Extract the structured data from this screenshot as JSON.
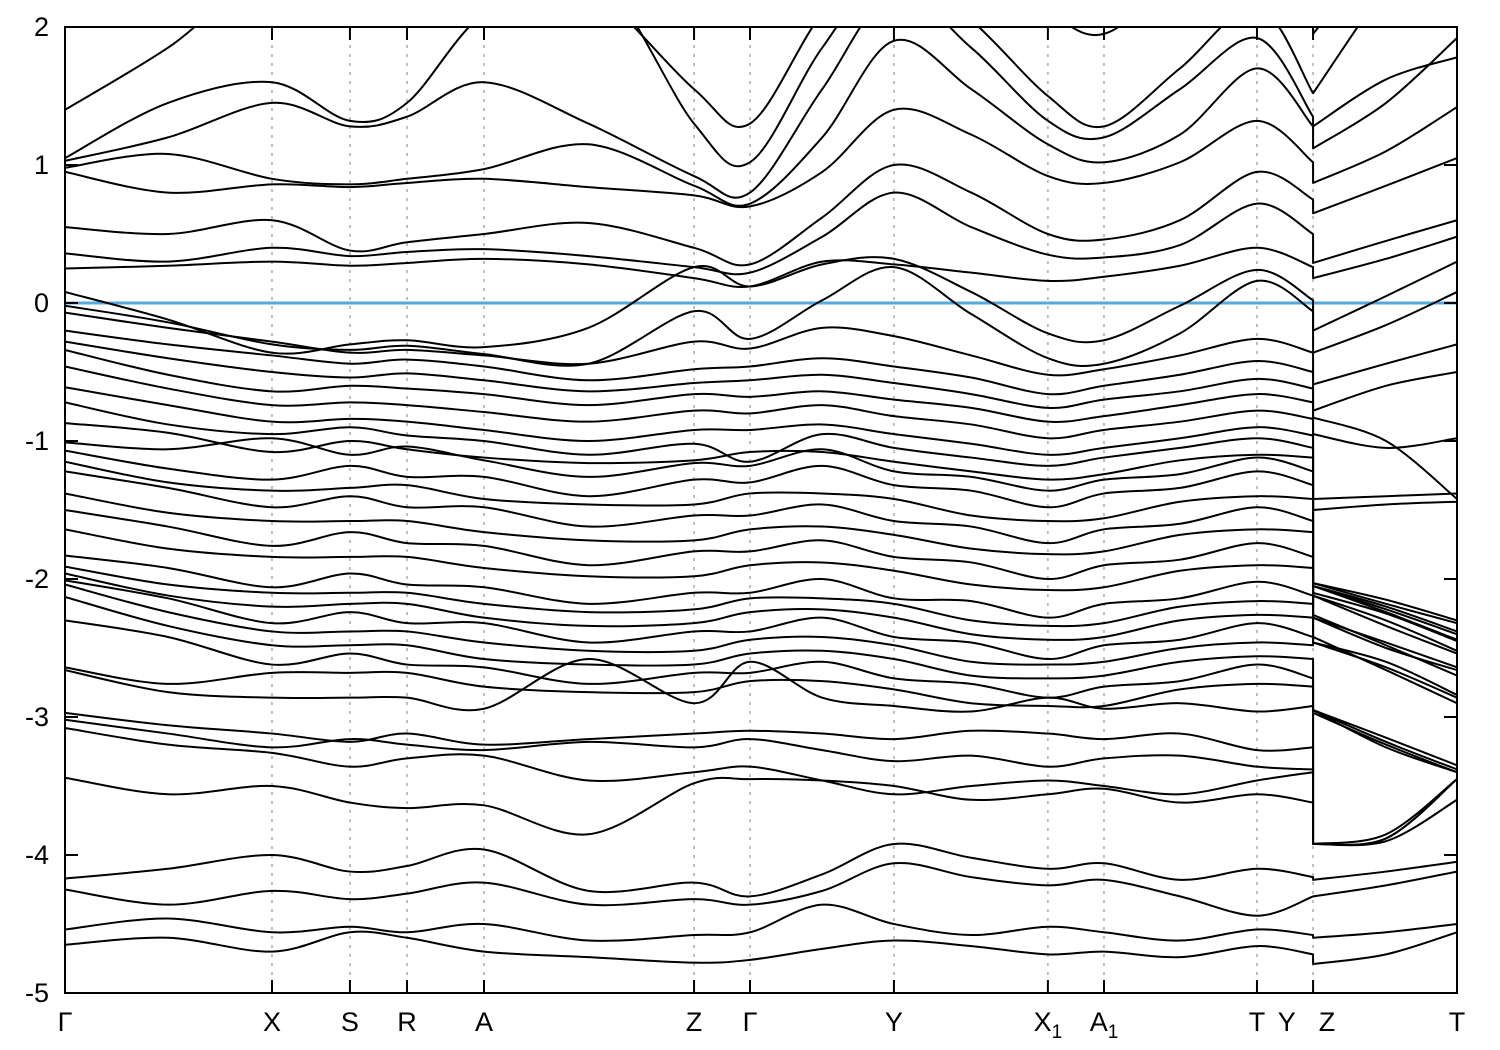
{
  "figure": {
    "background": "#ffffff",
    "description": "Electronic band structure plot with Fermi level line at 0"
  },
  "chart_data": {
    "type": "line",
    "title": "",
    "xlabel": "",
    "ylabel": "",
    "ylim": [
      -5,
      2
    ],
    "yticks": [
      2,
      1,
      0,
      -1,
      -2,
      -3,
      -4,
      -5
    ],
    "ytick_labels": [
      "2",
      "1",
      "0",
      "-1",
      "-2",
      "-3",
      "-4",
      "-5"
    ],
    "fermi_energy": 0,
    "fermi_color": "#55aadd",
    "band_color": "#000000",
    "axis_color": "#000000",
    "grid_color": "#aaaaaa",
    "grid": "vertical-dashed-at-kpoints",
    "legend": "none",
    "kpath": "Γ-X-S-R-A-Z-Γ-Y-X1-A1-T-Y | Z-T",
    "kticks": [
      0.1487,
      0.2047,
      0.2457,
      0.301,
      0.4519,
      0.4921,
      0.5955,
      0.7061,
      0.7464,
      0.8563,
      0.8966
    ],
    "klabels": [
      {
        "text": "Γ",
        "x": 0.0
      },
      {
        "text": "X",
        "x": 0.1487
      },
      {
        "text": "S",
        "x": 0.2047
      },
      {
        "text": "R",
        "x": 0.2457
      },
      {
        "text": "A",
        "x": 0.301
      },
      {
        "text": "Z",
        "x": 0.4519
      },
      {
        "text": "Γ",
        "x": 0.4921
      },
      {
        "text": "Y",
        "x": 0.5955
      },
      {
        "text": "X",
        "sub": "1",
        "x": 0.7061
      },
      {
        "text": "A",
        "sub": "1",
        "x": 0.7464
      },
      {
        "text": "T",
        "x": 0.8563
      },
      {
        "text": "Y",
        "x": 0.8777
      },
      {
        "text": "Z",
        "x": 0.9066
      },
      {
        "text": "T",
        "x": 1.0
      }
    ],
    "discontinuity_x": 0.8966,
    "stations_main": [
      0.0,
      0.074,
      0.1487,
      0.2047,
      0.2457,
      0.301,
      0.376,
      0.4519,
      0.4921,
      0.544,
      0.5955,
      0.651,
      0.7061,
      0.7464,
      0.801,
      0.8563,
      0.8966
    ],
    "stations_right": [
      0.8966,
      0.949,
      1.0
    ],
    "bands": [
      [
        1.4,
        1.85,
        2.4,
        2.1,
        2.45,
        2.6,
        2.3,
        1.55,
        1.3,
        2.1,
        2.6,
        2.4,
        2.1,
        1.95,
        2.35,
        2.6,
        2.05,
        1.95,
        2.6,
        3.2
      ],
      [
        1.05,
        1.45,
        1.6,
        1.32,
        1.45,
        2.1,
        2.45,
        1.3,
        1.02,
        1.85,
        2.45,
        2.05,
        1.5,
        1.28,
        1.7,
        2.15,
        1.52,
        1.52,
        2.3,
        3.0
      ],
      [
        1.03,
        1.2,
        1.45,
        1.28,
        1.35,
        1.6,
        1.3,
        0.92,
        0.8,
        1.55,
        2.25,
        1.85,
        1.32,
        1.2,
        1.55,
        1.92,
        1.35,
        1.28,
        1.62,
        1.78
      ],
      [
        0.98,
        1.08,
        0.9,
        0.86,
        0.9,
        0.97,
        1.15,
        0.85,
        0.72,
        1.2,
        1.9,
        1.55,
        1.15,
        1.02,
        1.22,
        1.7,
        1.28,
        1.12,
        1.45,
        1.92
      ],
      [
        0.95,
        0.8,
        0.86,
        0.84,
        0.87,
        0.9,
        0.84,
        0.78,
        0.7,
        0.95,
        1.4,
        1.22,
        0.92,
        0.87,
        1.02,
        1.32,
        1.02,
        0.87,
        1.1,
        1.42
      ],
      [
        0.55,
        0.5,
        0.6,
        0.38,
        0.44,
        0.5,
        0.58,
        0.4,
        0.28,
        0.62,
        1.0,
        0.8,
        0.5,
        0.46,
        0.6,
        0.95,
        0.75,
        0.65,
        0.85,
        1.05
      ],
      [
        0.36,
        0.3,
        0.4,
        0.34,
        0.37,
        0.39,
        0.34,
        0.26,
        0.22,
        0.48,
        0.8,
        0.55,
        0.35,
        0.33,
        0.42,
        0.72,
        0.5,
        0.29,
        0.45,
        0.6
      ],
      [
        0.25,
        0.27,
        0.3,
        0.27,
        0.29,
        0.32,
        0.28,
        0.18,
        0.12,
        0.3,
        0.28,
        0.22,
        0.16,
        0.19,
        0.27,
        0.4,
        0.26,
        0.18,
        0.32,
        0.48
      ],
      [
        0.08,
        -0.12,
        -0.36,
        -0.3,
        -0.27,
        -0.32,
        -0.18,
        0.26,
        0.12,
        0.28,
        0.32,
        0.08,
        -0.22,
        -0.27,
        -0.02,
        0.24,
        0.02,
        -0.2,
        0.05,
        0.3
      ],
      [
        -0.02,
        -0.14,
        -0.3,
        -0.34,
        -0.31,
        -0.37,
        -0.44,
        -0.06,
        -0.26,
        0.02,
        0.26,
        -0.08,
        -0.4,
        -0.44,
        -0.22,
        0.16,
        -0.06,
        -0.36,
        -0.16,
        0.08
      ],
      [
        -0.07,
        -0.18,
        -0.28,
        -0.36,
        -0.34,
        -0.38,
        -0.44,
        -0.28,
        -0.33,
        -0.18,
        -0.24,
        -0.38,
        -0.52,
        -0.48,
        -0.38,
        -0.26,
        -0.36,
        -0.59,
        -0.44,
        -0.3
      ],
      [
        -0.2,
        -0.3,
        -0.38,
        -0.44,
        -0.41,
        -0.46,
        -0.56,
        -0.48,
        -0.46,
        -0.4,
        -0.46,
        -0.54,
        -0.66,
        -0.6,
        -0.52,
        -0.42,
        -0.5,
        -0.78,
        -0.6,
        -0.5
      ],
      [
        -0.28,
        -0.4,
        -0.5,
        -0.54,
        -0.51,
        -0.56,
        -0.64,
        -0.58,
        -0.56,
        -0.52,
        -0.58,
        -0.66,
        -0.76,
        -0.7,
        -0.64,
        -0.55,
        -0.62,
        -0.83,
        -1.0,
        -1.42
      ],
      [
        -0.34,
        -0.52,
        -0.64,
        -0.6,
        -0.62,
        -0.66,
        -0.74,
        -0.66,
        -0.68,
        -0.64,
        -0.7,
        -0.76,
        -0.86,
        -0.82,
        -0.74,
        -0.66,
        -0.72,
        -0.95,
        -1.05,
        -0.98
      ],
      [
        -0.46,
        -0.62,
        -0.74,
        -0.72,
        -0.74,
        -0.79,
        -0.86,
        -0.78,
        -0.8,
        -0.74,
        -0.82,
        -0.88,
        -0.98,
        -0.92,
        -0.86,
        -0.78,
        -0.84,
        -1.42,
        -1.4,
        -1.38
      ],
      [
        -0.61,
        -0.74,
        -0.86,
        -0.84,
        -0.86,
        -0.92,
        -1.0,
        -0.92,
        -0.92,
        -0.88,
        -0.95,
        -1.02,
        -1.1,
        -1.05,
        -0.98,
        -0.9,
        -0.96,
        -1.5,
        -1.46,
        -1.44
      ],
      [
        -0.72,
        -0.88,
        -0.95,
        -0.9,
        -0.96,
        -1.0,
        -1.1,
        -1.02,
        -1.15,
        -0.95,
        -1.05,
        -1.12,
        -1.18,
        -1.12,
        -1.05,
        -0.98,
        -1.05,
        -2.03,
        -2.15,
        -2.3
      ],
      [
        -0.87,
        -0.94,
        -1.08,
        -1.0,
        -1.06,
        -1.12,
        -1.16,
        -1.14,
        -1.08,
        -1.08,
        -1.15,
        -1.22,
        -1.28,
        -1.24,
        -1.14,
        -1.1,
        -1.12,
        -2.1,
        -2.25,
        -2.45
      ],
      [
        -1.01,
        -1.06,
        -0.98,
        -1.1,
        -1.04,
        -1.14,
        -1.26,
        -1.16,
        -1.18,
        -1.06,
        -1.22,
        -1.26,
        -1.36,
        -1.28,
        -1.24,
        -1.12,
        -1.22,
        -2.03,
        -2.18,
        -2.32
      ],
      [
        -1.07,
        -1.2,
        -1.28,
        -1.18,
        -1.26,
        -1.26,
        -1.4,
        -1.28,
        -1.3,
        -1.18,
        -1.32,
        -1.36,
        -1.48,
        -1.38,
        -1.34,
        -1.22,
        -1.32,
        -2.12,
        -2.3,
        -2.52
      ],
      [
        -1.15,
        -1.3,
        -1.36,
        -1.34,
        -1.32,
        -1.42,
        -1.46,
        -1.46,
        -1.38,
        -1.38,
        -1.42,
        -1.54,
        -1.58,
        -1.56,
        -1.44,
        -1.4,
        -1.42,
        -2.26,
        -2.48,
        -2.7
      ],
      [
        -1.22,
        -1.34,
        -1.48,
        -1.4,
        -1.48,
        -1.48,
        -1.62,
        -1.54,
        -1.54,
        -1.46,
        -1.58,
        -1.62,
        -1.74,
        -1.64,
        -1.6,
        -1.48,
        -1.58,
        -2.42,
        -2.66,
        -2.9
      ],
      [
        -1.38,
        -1.52,
        -1.58,
        -1.58,
        -1.58,
        -1.66,
        -1.72,
        -1.72,
        -1.64,
        -1.62,
        -1.68,
        -1.78,
        -1.82,
        -1.8,
        -1.68,
        -1.64,
        -1.66,
        -2.05,
        -2.2,
        -2.38
      ],
      [
        -1.5,
        -1.62,
        -1.76,
        -1.66,
        -1.74,
        -1.76,
        -1.9,
        -1.8,
        -1.8,
        -1.72,
        -1.84,
        -1.88,
        -2.0,
        -1.9,
        -1.86,
        -1.74,
        -1.84,
        -2.28,
        -2.46,
        -2.64
      ],
      [
        -1.64,
        -1.78,
        -1.84,
        -1.84,
        -1.84,
        -1.92,
        -1.98,
        -1.98,
        -1.9,
        -1.88,
        -1.94,
        -2.04,
        -2.08,
        -2.06,
        -1.94,
        -1.9,
        -1.92,
        -2.46,
        -2.6,
        -2.84
      ],
      [
        -1.83,
        -1.92,
        -2.06,
        -1.96,
        -2.04,
        -2.06,
        -2.18,
        -2.1,
        -2.1,
        -2.0,
        -2.14,
        -2.16,
        -2.28,
        -2.18,
        -2.14,
        -2.02,
        -2.12,
        -2.05,
        -2.22,
        -2.4
      ],
      [
        -1.91,
        -2.04,
        -2.1,
        -2.1,
        -2.1,
        -2.18,
        -2.24,
        -2.22,
        -2.14,
        -2.14,
        -2.18,
        -2.3,
        -2.34,
        -2.32,
        -2.2,
        -2.16,
        -2.18,
        -2.12,
        -2.34,
        -2.54
      ],
      [
        -1.96,
        -2.12,
        -2.2,
        -2.18,
        -2.18,
        -2.28,
        -2.34,
        -2.32,
        -2.24,
        -2.22,
        -2.28,
        -2.4,
        -2.44,
        -2.42,
        -2.3,
        -2.26,
        -2.28,
        -2.28,
        -2.5,
        -2.66
      ],
      [
        -2.01,
        -2.14,
        -2.32,
        -2.24,
        -2.32,
        -2.32,
        -2.46,
        -2.38,
        -2.38,
        -2.28,
        -2.42,
        -2.46,
        -2.58,
        -2.48,
        -2.44,
        -2.32,
        -2.42,
        -2.46,
        -2.64,
        -2.86
      ],
      [
        -2.04,
        -2.24,
        -2.38,
        -2.38,
        -2.38,
        -2.46,
        -2.52,
        -2.52,
        -2.44,
        -2.42,
        -2.48,
        -2.6,
        -2.62,
        -2.6,
        -2.5,
        -2.46,
        -2.48,
        -2.05,
        -2.24,
        -2.44
      ],
      [
        -2.13,
        -2.34,
        -2.48,
        -2.48,
        -2.48,
        -2.58,
        -2.62,
        -2.62,
        -2.54,
        -2.52,
        -2.58,
        -2.7,
        -2.72,
        -2.7,
        -2.6,
        -2.56,
        -2.58,
        -2.95,
        -3.15,
        -3.35
      ],
      [
        -2.3,
        -2.42,
        -2.62,
        -2.54,
        -2.62,
        -2.64,
        -2.76,
        -2.68,
        -2.68,
        -2.6,
        -2.72,
        -2.76,
        -2.86,
        -2.78,
        -2.74,
        -2.62,
        -2.72,
        -2.95,
        -3.18,
        -3.38
      ],
      [
        -2.64,
        -2.76,
        -2.68,
        -2.68,
        -2.68,
        -2.78,
        -2.82,
        -2.82,
        -2.74,
        -2.74,
        -2.8,
        -2.9,
        -2.92,
        -2.92,
        -2.8,
        -2.76,
        -2.78,
        -2.97,
        -3.2,
        -3.4
      ],
      [
        -2.66,
        -2.82,
        -2.86,
        -2.86,
        -2.86,
        -2.94,
        -2.58,
        -2.9,
        -2.6,
        -2.86,
        -2.92,
        -2.96,
        -2.86,
        -2.94,
        -2.9,
        -2.96,
        -2.92,
        -3.92,
        -3.88,
        -3.45
      ],
      [
        -2.97,
        -3.06,
        -3.12,
        -3.18,
        -3.12,
        -3.2,
        -3.16,
        -3.12,
        -3.1,
        -3.12,
        -3.16,
        -3.1,
        -3.12,
        -3.16,
        -3.12,
        -3.24,
        -3.22,
        -3.92,
        -3.88,
        -3.45
      ],
      [
        -3.02,
        -3.12,
        -3.22,
        -3.16,
        -3.2,
        -3.24,
        -3.18,
        -3.22,
        -3.16,
        -3.24,
        -3.32,
        -3.28,
        -3.36,
        -3.3,
        -3.28,
        -3.36,
        -3.38,
        -3.92,
        -3.85,
        -3.45
      ],
      [
        -3.08,
        -3.2,
        -3.26,
        -3.36,
        -3.3,
        -3.28,
        -3.46,
        -3.4,
        -3.36,
        -3.46,
        -3.56,
        -3.5,
        -3.46,
        -3.5,
        -3.56,
        -3.46,
        -3.4,
        -2.95,
        -3.22,
        -3.4
      ],
      [
        -3.44,
        -3.56,
        -3.5,
        -3.62,
        -3.66,
        -3.64,
        -3.85,
        -3.48,
        -3.45,
        -3.46,
        -3.5,
        -3.6,
        -3.56,
        -3.52,
        -3.62,
        -3.56,
        -3.62,
        -3.92,
        -3.9,
        -3.6
      ],
      [
        -4.17,
        -4.1,
        -4.0,
        -4.12,
        -4.08,
        -3.96,
        -4.26,
        -4.2,
        -4.3,
        -4.14,
        -3.92,
        -4.02,
        -4.1,
        -4.06,
        -4.18,
        -4.1,
        -4.16,
        -4.18,
        -4.12,
        -4.05
      ],
      [
        -4.25,
        -4.36,
        -4.26,
        -4.32,
        -4.28,
        -4.2,
        -4.36,
        -4.32,
        -4.36,
        -4.26,
        -4.06,
        -4.16,
        -4.22,
        -4.18,
        -4.3,
        -4.44,
        -4.3,
        -4.3,
        -4.22,
        -4.12
      ],
      [
        -4.54,
        -4.46,
        -4.56,
        -4.52,
        -4.56,
        -4.5,
        -4.62,
        -4.58,
        -4.56,
        -4.36,
        -4.5,
        -4.58,
        -4.52,
        -4.56,
        -4.62,
        -4.54,
        -4.58,
        -4.6,
        -4.56,
        -4.5
      ],
      [
        -4.65,
        -4.6,
        -4.7,
        -4.56,
        -4.6,
        -4.7,
        -4.74,
        -4.78,
        -4.76,
        -4.68,
        -4.62,
        -4.66,
        -4.72,
        -4.7,
        -4.74,
        -4.66,
        -4.72,
        -4.79,
        -4.72,
        -4.56
      ]
    ]
  }
}
